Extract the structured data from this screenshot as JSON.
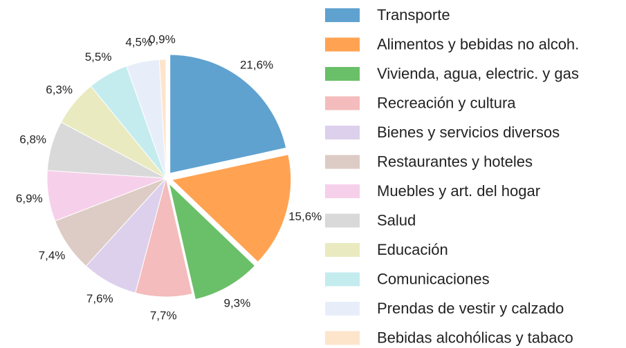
{
  "chart_data": {
    "type": "pie",
    "categories": [
      "Transporte",
      "Alimentos y bebidas no alcoh.",
      "Vivienda, agua, electric. y gas",
      "Recreación y cultura",
      "Bienes y servicios diversos",
      "Restaurantes y hoteles",
      "Muebles y art. del hogar",
      "Salud",
      "Educación",
      "Comunicaciones",
      "Prendas de vestir y calzado",
      "Bebidas alcohólicas y tabaco"
    ],
    "values": [
      21.6,
      15.6,
      9.3,
      7.7,
      7.6,
      7.4,
      6.9,
      6.8,
      6.3,
      5.5,
      4.5,
      0.9
    ],
    "value_labels": [
      "21,6%",
      "15,6%",
      "9,3%",
      "7,7%",
      "7,6%",
      "7,4%",
      "6,9%",
      "6,8%",
      "6,3%",
      "5,5%",
      "4,5%",
      "0,9%"
    ],
    "colors": [
      "#5fa2d0",
      "#ffa352",
      "#6abf69",
      "#f4bcbc",
      "#ddd0ec",
      "#ddcbc5",
      "#f6d0ea",
      "#d9d9d9",
      "#eaeac0",
      "#c4ecef",
      "#e8eef9",
      "#fde5cc"
    ],
    "exploded": [
      0,
      1,
      2
    ]
  }
}
